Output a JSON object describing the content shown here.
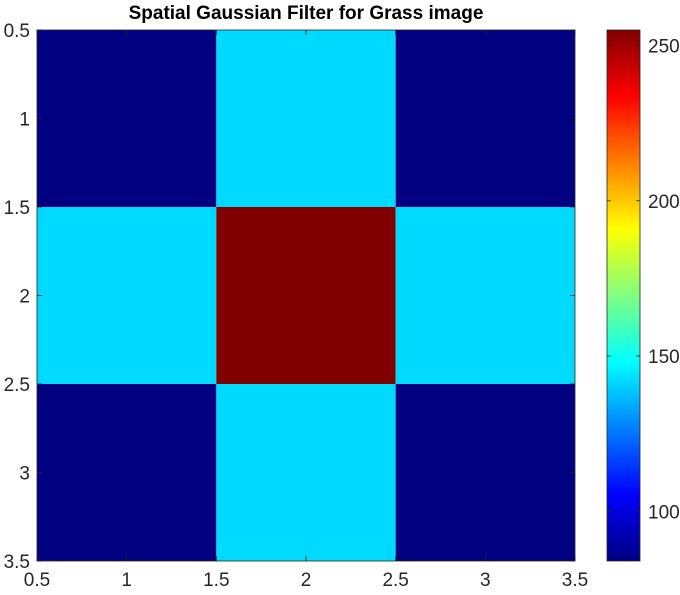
{
  "chart_data": {
    "type": "heatmap",
    "title": "Spatial Gaussian Filter for Grass image",
    "xlabel": "",
    "ylabel": "",
    "x_centers": [
      1,
      2,
      3
    ],
    "y_centers": [
      1,
      2,
      3
    ],
    "values": [
      [
        84,
        142,
        84
      ],
      [
        142,
        255,
        142
      ],
      [
        84,
        142,
        84
      ]
    ],
    "xlim": [
      0.5,
      3.5
    ],
    "ylim": [
      0.5,
      3.5
    ],
    "y_reversed": true,
    "xticks": [
      "0.5",
      "1",
      "1.5",
      "2",
      "2.5",
      "3",
      "3.5"
    ],
    "yticks": [
      "0.5",
      "1",
      "1.5",
      "2",
      "2.5",
      "3",
      "3.5"
    ],
    "colormap": "jet",
    "clim": [
      84,
      255
    ],
    "colorbar_ticks": [
      "100",
      "150",
      "200",
      "250"
    ],
    "grid": false
  }
}
